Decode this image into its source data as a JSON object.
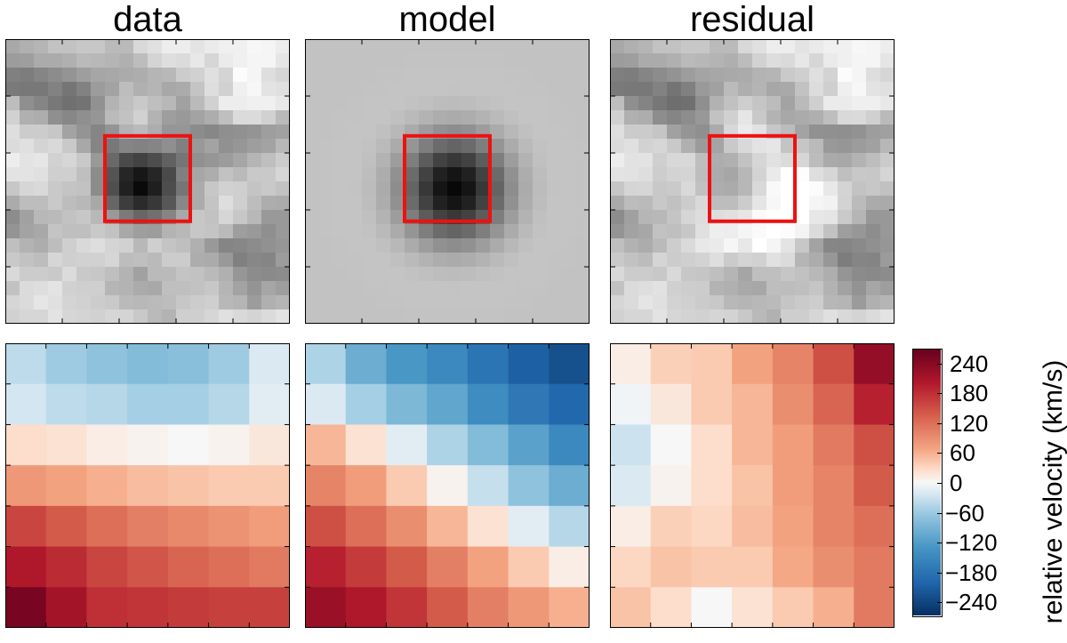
{
  "titles": [
    "data",
    "model",
    "residual"
  ],
  "colorbar": {
    "label": "relative velocity (km/s)",
    "ticks": [
      "240",
      "180",
      "120",
      "60",
      "0",
      "−60",
      "−120",
      "−180",
      "−240"
    ],
    "range": [
      -270,
      270
    ],
    "colormap": "RdBu_r"
  },
  "chart_data": [
    {
      "type": "heatmap",
      "title": "data",
      "description_row": "flux",
      "values": [
        [
          0.66,
          0.69,
          0.71,
          0.76,
          0.76,
          0.78,
          0.78,
          0.73,
          0.73,
          0.85,
          0.88,
          0.93,
          0.93,
          0.89,
          0.92,
          0.94,
          0.94,
          0.97,
          0.96,
          0.93
        ],
        [
          0.61,
          0.62,
          0.67,
          0.67,
          0.69,
          0.73,
          0.72,
          0.71,
          0.69,
          0.74,
          0.83,
          0.87,
          0.86,
          0.91,
          0.84,
          0.92,
          0.94,
          0.96,
          0.96,
          0.9
        ],
        [
          0.5,
          0.49,
          0.52,
          0.55,
          0.58,
          0.62,
          0.65,
          0.66,
          0.67,
          0.68,
          0.71,
          0.72,
          0.8,
          0.82,
          0.88,
          0.83,
          0.99,
          0.96,
          0.87,
          0.84
        ],
        [
          0.48,
          0.47,
          0.47,
          0.51,
          0.46,
          0.51,
          0.61,
          0.64,
          0.74,
          0.69,
          0.71,
          0.66,
          0.67,
          0.77,
          0.87,
          0.82,
          0.94,
          0.97,
          0.89,
          0.88
        ],
        [
          0.74,
          0.56,
          0.52,
          0.47,
          0.44,
          0.45,
          0.57,
          0.7,
          0.75,
          0.79,
          0.75,
          0.72,
          0.63,
          0.73,
          0.82,
          0.93,
          0.93,
          0.94,
          0.94,
          0.91
        ],
        [
          0.82,
          0.69,
          0.68,
          0.56,
          0.53,
          0.56,
          0.59,
          0.73,
          0.76,
          0.82,
          0.7,
          0.62,
          0.6,
          0.64,
          0.68,
          0.75,
          0.86,
          0.86,
          0.82,
          0.73
        ],
        [
          0.87,
          0.8,
          0.8,
          0.78,
          0.64,
          0.58,
          0.52,
          0.58,
          0.7,
          0.73,
          0.68,
          0.59,
          0.59,
          0.55,
          0.53,
          0.56,
          0.57,
          0.58,
          0.62,
          0.63
        ],
        [
          0.86,
          0.88,
          0.83,
          0.85,
          0.79,
          0.66,
          0.52,
          0.47,
          0.52,
          0.51,
          0.52,
          0.56,
          0.5,
          0.6,
          0.64,
          0.57,
          0.59,
          0.62,
          0.64,
          0.72
        ],
        [
          0.93,
          0.89,
          0.9,
          0.82,
          0.84,
          0.79,
          0.6,
          0.41,
          0.29,
          0.26,
          0.3,
          0.38,
          0.46,
          0.57,
          0.59,
          0.61,
          0.65,
          0.71,
          0.75,
          0.8
        ],
        [
          0.89,
          0.89,
          0.88,
          0.81,
          0.81,
          0.75,
          0.55,
          0.33,
          0.15,
          0.09,
          0.15,
          0.29,
          0.5,
          0.65,
          0.68,
          0.76,
          0.73,
          0.79,
          0.79,
          0.84
        ],
        [
          0.78,
          0.84,
          0.85,
          0.79,
          0.77,
          0.76,
          0.55,
          0.31,
          0.13,
          0.04,
          0.12,
          0.3,
          0.46,
          0.67,
          0.78,
          0.82,
          0.81,
          0.77,
          0.79,
          0.76
        ],
        [
          0.67,
          0.74,
          0.74,
          0.79,
          0.74,
          0.72,
          0.66,
          0.4,
          0.24,
          0.17,
          0.22,
          0.34,
          0.53,
          0.67,
          0.77,
          0.87,
          0.81,
          0.74,
          0.68,
          0.67
        ],
        [
          0.55,
          0.63,
          0.72,
          0.73,
          0.76,
          0.78,
          0.72,
          0.6,
          0.48,
          0.4,
          0.44,
          0.52,
          0.66,
          0.78,
          0.76,
          0.84,
          0.78,
          0.72,
          0.6,
          0.6
        ],
        [
          0.58,
          0.64,
          0.66,
          0.77,
          0.75,
          0.75,
          0.79,
          0.76,
          0.66,
          0.62,
          0.61,
          0.7,
          0.72,
          0.78,
          0.77,
          0.73,
          0.62,
          0.6,
          0.56,
          0.6
        ],
        [
          0.75,
          0.7,
          0.68,
          0.74,
          0.81,
          0.85,
          0.87,
          0.83,
          0.82,
          0.72,
          0.81,
          0.77,
          0.75,
          0.69,
          0.6,
          0.52,
          0.53,
          0.55,
          0.57,
          0.59
        ],
        [
          0.79,
          0.76,
          0.74,
          0.84,
          0.81,
          0.82,
          0.82,
          0.84,
          0.74,
          0.75,
          0.73,
          0.8,
          0.8,
          0.68,
          0.67,
          0.6,
          0.5,
          0.53,
          0.52,
          0.61
        ],
        [
          0.85,
          0.8,
          0.8,
          0.79,
          0.86,
          0.79,
          0.78,
          0.75,
          0.7,
          0.63,
          0.73,
          0.73,
          0.77,
          0.76,
          0.73,
          0.69,
          0.59,
          0.55,
          0.54,
          0.55
        ],
        [
          0.76,
          0.86,
          0.87,
          0.89,
          0.82,
          0.81,
          0.81,
          0.71,
          0.7,
          0.67,
          0.66,
          0.75,
          0.75,
          0.76,
          0.78,
          0.71,
          0.64,
          0.58,
          0.65,
          0.62
        ],
        [
          0.84,
          0.86,
          0.9,
          0.88,
          0.83,
          0.82,
          0.8,
          0.79,
          0.73,
          0.72,
          0.73,
          0.74,
          0.78,
          0.8,
          0.81,
          0.72,
          0.71,
          0.61,
          0.69,
          0.71
        ],
        [
          0.82,
          0.84,
          0.84,
          0.89,
          0.84,
          0.83,
          0.82,
          0.84,
          0.83,
          0.79,
          0.73,
          0.7,
          0.81,
          0.81,
          0.84,
          0.88,
          0.85,
          0.83,
          0.86,
          0.89
        ]
      ],
      "box": {
        "x": [
          7,
          13
        ],
        "y": [
          6.8,
          12.8
        ],
        "color": "#ee1111"
      }
    },
    {
      "type": "heatmap",
      "title": "model",
      "values": "smooth peak: 0.76 background, minimum 0.03 at column 10, row 10, radius about 3 pixels",
      "box": {
        "x": [
          7,
          13
        ],
        "y": [
          6.8,
          12.8
        ],
        "color": "#ee1111"
      }
    },
    {
      "type": "heatmap",
      "title": "residual",
      "values": "data minus model",
      "box": {
        "x": [
          7,
          13
        ],
        "y": [
          6.8,
          12.8
        ],
        "color": "#ee1111"
      }
    },
    {
      "type": "heatmap",
      "title": "",
      "unit": "km/s",
      "values": [
        [
          -40,
          -60,
          -70,
          -80,
          -75,
          -60,
          -20
        ],
        [
          -25,
          -40,
          -45,
          -55,
          -55,
          -45,
          -15
        ],
        [
          25,
          20,
          10,
          5,
          0,
          5,
          15
        ],
        [
          80,
          70,
          60,
          50,
          45,
          40,
          40
        ],
        [
          160,
          140,
          120,
          105,
          95,
          85,
          75
        ],
        [
          205,
          185,
          160,
          145,
          130,
          120,
          110
        ],
        [
          255,
          215,
          180,
          175,
          170,
          165,
          165
        ]
      ]
    },
    {
      "type": "heatmap",
      "title": "",
      "unit": "km/s",
      "values": [
        [
          -50,
          -100,
          -130,
          -150,
          -180,
          -210,
          -230
        ],
        [
          -20,
          -55,
          -85,
          -110,
          -145,
          -175,
          -200
        ],
        [
          55,
          20,
          -15,
          -50,
          -80,
          -115,
          -150
        ],
        [
          100,
          75,
          40,
          5,
          -35,
          -70,
          -100
        ],
        [
          150,
          120,
          90,
          55,
          20,
          -15,
          -45
        ],
        [
          195,
          170,
          140,
          105,
          70,
          40,
          10
        ],
        [
          225,
          205,
          175,
          140,
          105,
          80,
          60
        ]
      ]
    },
    {
      "type": "heatmap",
      "title": "",
      "unit": "km/s",
      "values": [
        [
          10,
          35,
          40,
          70,
          100,
          150,
          230
        ],
        [
          -5,
          15,
          40,
          55,
          90,
          130,
          195
        ],
        [
          -30,
          0,
          25,
          55,
          75,
          110,
          150
        ],
        [
          -20,
          5,
          25,
          45,
          75,
          100,
          140
        ],
        [
          10,
          35,
          30,
          50,
          70,
          100,
          120
        ],
        [
          30,
          45,
          40,
          40,
          65,
          90,
          110
        ],
        [
          45,
          25,
          0,
          20,
          40,
          60,
          110
        ]
      ]
    }
  ]
}
